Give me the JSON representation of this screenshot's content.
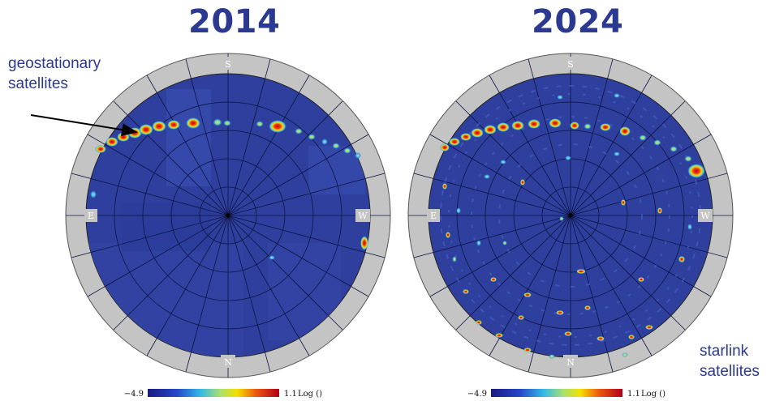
{
  "panels": [
    {
      "year": "2014",
      "directions": {
        "top": "S",
        "bottom": "N",
        "left": "E",
        "right": "W"
      },
      "colorbar": {
        "min": "−4.9",
        "max": "1.1",
        "unit": "Log ()"
      }
    },
    {
      "year": "2024",
      "directions": {
        "top": "S",
        "bottom": "N",
        "left": "E",
        "right": "W"
      },
      "colorbar": {
        "min": "−4.9",
        "max": "1.1",
        "unit": "Log ()"
      }
    }
  ],
  "annotations": {
    "geostationary": [
      "geostationary",
      "satellites"
    ],
    "starlink": [
      "starlink",
      "satellites"
    ]
  },
  "colors": {
    "title": "#2b3990",
    "sky_background": "#2e3f9e",
    "ring": "#c4c4c4"
  }
}
